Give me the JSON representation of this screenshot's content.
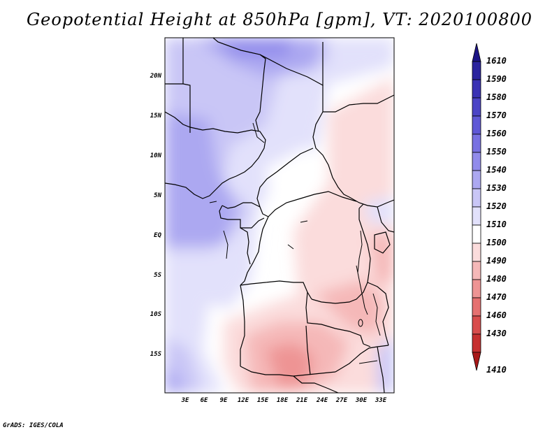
{
  "title": "Geopotential Height at 850hPa [gpm], VT: 2020100800",
  "footer": "GrADS: IGES/COLA",
  "map": {
    "lon_range": [
      0,
      35
    ],
    "lat_range": [
      -20,
      24
    ],
    "lat_labels": [
      "20N",
      "15N",
      "10N",
      "5N",
      "EQ",
      "5S",
      "10S",
      "15S"
    ],
    "lon_labels": [
      "3E",
      "6E",
      "9E",
      "12E",
      "15E",
      "18E",
      "21E",
      "24E",
      "27E",
      "30E",
      "33E"
    ]
  },
  "colorbar": {
    "levels": [
      "1610",
      "1590",
      "1580",
      "1570",
      "1560",
      "1550",
      "1540",
      "1530",
      "1520",
      "1510",
      "1500",
      "1490",
      "1480",
      "1470",
      "1460",
      "1430",
      "1410"
    ],
    "colors": [
      "#1c1486",
      "#2a239e",
      "#3a32b4",
      "#4b44c6",
      "#5f58d6",
      "#7871e2",
      "#918beb",
      "#aca8f1",
      "#c9c6f6",
      "#e2e1fb",
      "#ffffff",
      "#fbdcdc",
      "#f5b8b8",
      "#ee9494",
      "#e57070",
      "#d84c4c",
      "#c62f2f",
      "#a81818"
    ]
  }
}
